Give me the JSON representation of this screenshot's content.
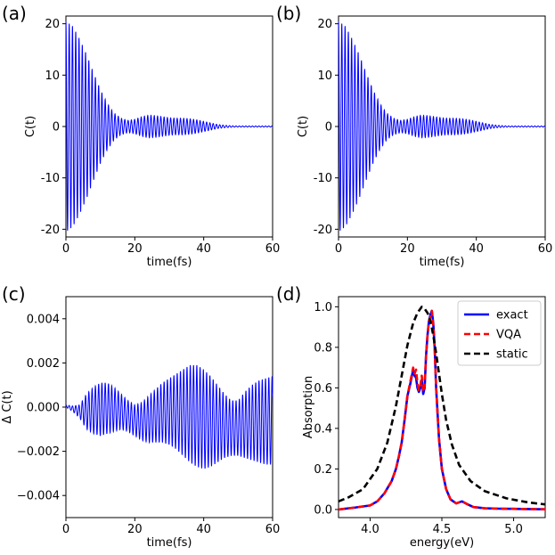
{
  "figure": {
    "panels": [
      {
        "id": "a",
        "label": "(a)",
        "xlabel": "time(fs)",
        "ylabel": "C(t)"
      },
      {
        "id": "b",
        "label": "(b)",
        "xlabel": "time(fs)",
        "ylabel": "C(t)"
      },
      {
        "id": "c",
        "label": "(c)",
        "xlabel": "time(fs)",
        "ylabel": "Δ C(t)"
      },
      {
        "id": "d",
        "label": "(d)",
        "xlabel": "energy(eV)",
        "ylabel": "Absorption"
      }
    ]
  },
  "chart_data": [
    {
      "panel": "(a)",
      "type": "line",
      "xlabel": "time(fs)",
      "ylabel": "C(t)",
      "xlim": [
        0,
        60
      ],
      "ylim": [
        -21.5,
        21.5
      ],
      "xticks": [
        "0",
        "20",
        "40",
        "60"
      ],
      "yticks": [
        "-20",
        "-10",
        "0",
        "10",
        "20"
      ],
      "color": "#0000ff",
      "series": [
        {
          "style": "oscillation",
          "period_fs": 0.95,
          "envelope_t": [
            0,
            2,
            4,
            6,
            8,
            10,
            12,
            14,
            16,
            18,
            20,
            22,
            24,
            26,
            28,
            30,
            32,
            34,
            36,
            38,
            40,
            42,
            44,
            46,
            48,
            50,
            52,
            54,
            56,
            58,
            60
          ],
          "envelope_amp": [
            20.5,
            19.5,
            17,
            14,
            10.5,
            7.2,
            4.5,
            2.6,
            1.6,
            1.2,
            1.4,
            1.9,
            2.2,
            2.1,
            1.9,
            1.7,
            1.6,
            1.6,
            1.5,
            1.3,
            1.0,
            0.7,
            0.4,
            0.25,
            0.15,
            0.1,
            0.1,
            0.1,
            0.1,
            0.1,
            0.1
          ]
        }
      ]
    },
    {
      "panel": "(b)",
      "type": "line",
      "xlabel": "time(fs)",
      "ylabel": "C(t)",
      "xlim": [
        0,
        60
      ],
      "ylim": [
        -21.5,
        21.5
      ],
      "xticks": [
        "0",
        "20",
        "40",
        "60"
      ],
      "yticks": [
        "-20",
        "-10",
        "0",
        "10",
        "20"
      ],
      "color": "#0000ff",
      "series": [
        {
          "style": "oscillation",
          "period_fs": 0.95,
          "envelope_t": [
            0,
            2,
            4,
            6,
            8,
            10,
            12,
            14,
            16,
            18,
            20,
            22,
            24,
            26,
            28,
            30,
            32,
            34,
            36,
            38,
            40,
            42,
            44,
            46,
            48,
            50,
            52,
            54,
            56,
            58,
            60
          ],
          "envelope_amp": [
            20.5,
            19.5,
            17,
            14,
            10.5,
            7.2,
            4.5,
            2.6,
            1.6,
            1.2,
            1.4,
            1.9,
            2.2,
            2.1,
            1.9,
            1.7,
            1.6,
            1.6,
            1.5,
            1.3,
            1.0,
            0.7,
            0.4,
            0.25,
            0.15,
            0.1,
            0.1,
            0.1,
            0.1,
            0.1,
            0.1
          ]
        }
      ]
    },
    {
      "panel": "(c)",
      "type": "line",
      "xlabel": "time(fs)",
      "ylabel": "Δ C(t)",
      "xlim": [
        0,
        60
      ],
      "ylim": [
        -0.005,
        0.005
      ],
      "xticks": [
        "0",
        "20",
        "40",
        "60"
      ],
      "yticks": [
        "−0.004",
        "−0.002",
        "0.000",
        "0.002",
        "0.004"
      ],
      "color": "#0000ff",
      "series": [
        {
          "style": "oscillation",
          "period_fs": 0.95,
          "envelope_t": [
            0,
            2,
            4,
            6,
            8,
            10,
            12,
            14,
            16,
            18,
            20,
            22,
            24,
            26,
            28,
            30,
            32,
            34,
            36,
            38,
            40,
            42,
            44,
            46,
            48,
            50,
            52,
            54,
            56,
            58,
            60
          ],
          "envelope_upper": [
            0.0001,
            5e-05,
            0.0001,
            0.0006,
            0.0009,
            0.0011,
            0.0011,
            0.0009,
            0.0006,
            0.0003,
            0.0001,
            0.0002,
            0.0005,
            0.0008,
            0.0011,
            0.0013,
            0.0015,
            0.0017,
            0.0019,
            0.0019,
            0.0017,
            0.0014,
            0.001,
            0.0006,
            0.0003,
            0.0003,
            0.0007,
            0.001,
            0.0012,
            0.0013,
            0.0014
          ],
          "envelope_lower": [
            0.0,
            -0.0002,
            -0.0005,
            -0.001,
            -0.0012,
            -0.0013,
            -0.0012,
            -0.0011,
            -0.001,
            -0.0011,
            -0.0013,
            -0.0015,
            -0.0016,
            -0.0016,
            -0.0016,
            -0.0017,
            -0.0019,
            -0.0022,
            -0.0025,
            -0.0027,
            -0.0028,
            -0.0027,
            -0.0025,
            -0.0023,
            -0.0022,
            -0.0022,
            -0.0023,
            -0.0024,
            -0.0025,
            -0.0026,
            -0.0026
          ]
        }
      ]
    },
    {
      "panel": "(d)",
      "type": "line",
      "xlabel": "energy(eV)",
      "ylabel": "Absorption",
      "xlim": [
        3.78,
        5.22
      ],
      "ylim": [
        -0.04,
        1.05
      ],
      "xticks": [
        4.0,
        4.5,
        5.0
      ],
      "xtick_labels": [
        "4.0",
        "4.5",
        "5.0"
      ],
      "yticks": [
        0.0,
        0.2,
        0.4,
        0.6,
        0.8,
        1.0
      ],
      "ytick_labels": [
        "0.0",
        "0.2",
        "0.4",
        "0.6",
        "0.8",
        "1.0"
      ],
      "legend": "top-right",
      "series": [
        {
          "name": "exact",
          "color": "#0000ff",
          "dash": "solid",
          "x": [
            3.78,
            3.9,
            4.0,
            4.05,
            4.1,
            4.15,
            4.18,
            4.2,
            4.22,
            4.24,
            4.26,
            4.28,
            4.3,
            4.31,
            4.32,
            4.33,
            4.34,
            4.35,
            4.36,
            4.37,
            4.38,
            4.39,
            4.4,
            4.41,
            4.42,
            4.43,
            4.44,
            4.45,
            4.46,
            4.48,
            4.5,
            4.53,
            4.56,
            4.6,
            4.64,
            4.68,
            4.72,
            4.8,
            4.9,
            5.0,
            5.22
          ],
          "y": [
            0.0,
            0.01,
            0.02,
            0.04,
            0.08,
            0.14,
            0.2,
            0.26,
            0.33,
            0.44,
            0.56,
            0.62,
            0.69,
            0.66,
            0.65,
            0.6,
            0.58,
            0.6,
            0.64,
            0.57,
            0.6,
            0.76,
            0.86,
            0.93,
            0.96,
            0.98,
            0.92,
            0.8,
            0.6,
            0.35,
            0.2,
            0.1,
            0.05,
            0.03,
            0.04,
            0.025,
            0.012,
            0.006,
            0.004,
            0.003,
            0.001
          ]
        },
        {
          "name": "VQA",
          "color": "#ff0000",
          "dash": "dashed",
          "x": [
            3.78,
            3.9,
            4.0,
            4.05,
            4.1,
            4.15,
            4.18,
            4.2,
            4.22,
            4.24,
            4.26,
            4.28,
            4.3,
            4.31,
            4.32,
            4.33,
            4.34,
            4.35,
            4.36,
            4.37,
            4.38,
            4.39,
            4.4,
            4.41,
            4.42,
            4.43,
            4.44,
            4.45,
            4.46,
            4.48,
            4.5,
            4.53,
            4.56,
            4.6,
            4.64,
            4.68,
            4.72,
            4.8,
            4.9,
            5.0,
            5.22
          ],
          "y": [
            0.0,
            0.01,
            0.02,
            0.04,
            0.08,
            0.14,
            0.2,
            0.26,
            0.33,
            0.44,
            0.56,
            0.63,
            0.7,
            0.67,
            0.69,
            0.62,
            0.59,
            0.61,
            0.66,
            0.58,
            0.61,
            0.76,
            0.86,
            0.93,
            0.95,
            0.98,
            0.91,
            0.79,
            0.6,
            0.35,
            0.2,
            0.1,
            0.05,
            0.03,
            0.04,
            0.025,
            0.012,
            0.006,
            0.004,
            0.003,
            0.001
          ]
        },
        {
          "name": "static",
          "color": "#000000",
          "dash": "dashed",
          "x": [
            3.78,
            3.85,
            3.95,
            4.05,
            4.12,
            4.18,
            4.22,
            4.26,
            4.3,
            4.33,
            4.36,
            4.38,
            4.4,
            4.42,
            4.44,
            4.46,
            4.48,
            4.5,
            4.53,
            4.57,
            4.62,
            4.7,
            4.8,
            4.95,
            5.1,
            5.22
          ],
          "y": [
            0.04,
            0.06,
            0.1,
            0.2,
            0.33,
            0.51,
            0.66,
            0.81,
            0.92,
            0.97,
            1.0,
            0.99,
            0.97,
            0.93,
            0.86,
            0.77,
            0.67,
            0.57,
            0.44,
            0.32,
            0.22,
            0.14,
            0.09,
            0.055,
            0.035,
            0.025
          ]
        }
      ]
    }
  ]
}
